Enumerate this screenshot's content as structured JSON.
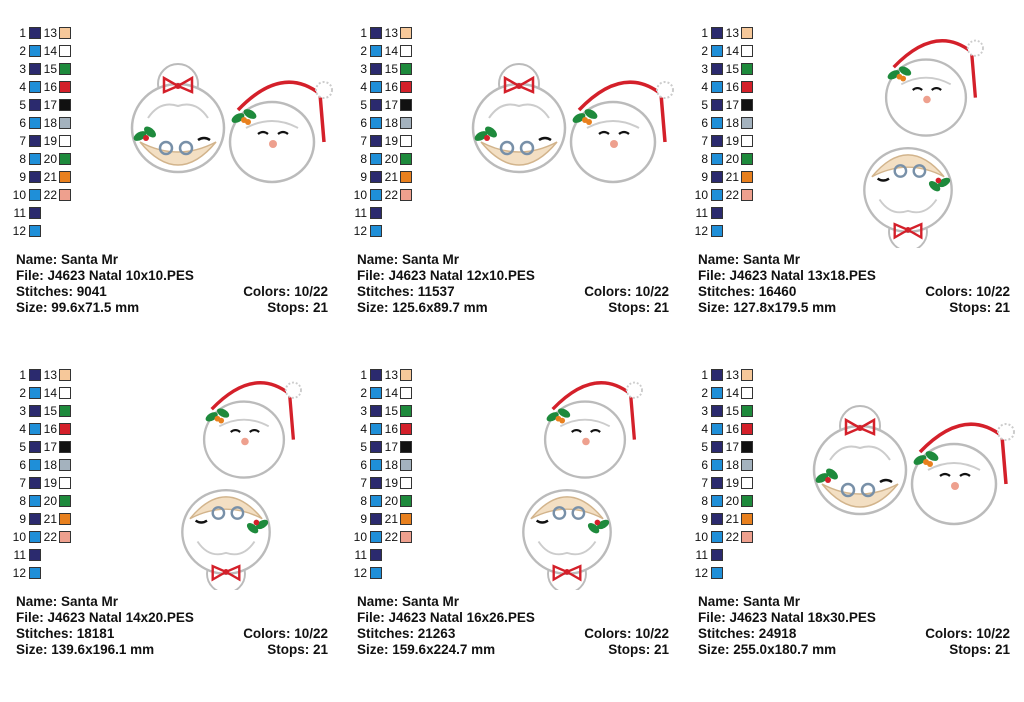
{
  "labels": {
    "name": "Name:",
    "file": "File:",
    "stitches": "Stitches:",
    "size": "Size:",
    "colors": "Colors:",
    "stops": "Stops:"
  },
  "palette": {
    "left": [
      {
        "n": "1",
        "color": "#2b2a6e"
      },
      {
        "n": "2",
        "color": "#1f8fd8"
      },
      {
        "n": "3",
        "color": "#2b2a6e"
      },
      {
        "n": "4",
        "color": "#1f8fd8"
      },
      {
        "n": "5",
        "color": "#2b2a6e"
      },
      {
        "n": "6",
        "color": "#1f8fd8"
      },
      {
        "n": "7",
        "color": "#2b2a6e"
      },
      {
        "n": "8",
        "color": "#1f8fd8"
      },
      {
        "n": "9",
        "color": "#2b2a6e"
      },
      {
        "n": "10",
        "color": "#1f8fd8"
      },
      {
        "n": "11",
        "color": "#2b2a6e"
      },
      {
        "n": "12",
        "color": "#1f8fd8"
      }
    ],
    "right": [
      {
        "n": "13",
        "color": "#f6c89a"
      },
      {
        "n": "14",
        "color": "#ffffff"
      },
      {
        "n": "15",
        "color": "#1e8a3c"
      },
      {
        "n": "16",
        "color": "#d4202a"
      },
      {
        "n": "17",
        "color": "#111111"
      },
      {
        "n": "18",
        "color": "#a4b2be"
      },
      {
        "n": "19",
        "color": "#ffffff"
      },
      {
        "n": "20",
        "color": "#1e8a3c"
      },
      {
        "n": "21",
        "color": "#e8801e"
      },
      {
        "n": "22",
        "color": "#eea08e"
      }
    ]
  },
  "panels": [
    {
      "name": "Santa Mr",
      "file": "J4623 Natal 10x10.PES",
      "stitches": "9041",
      "size": "99.6x71.5 mm",
      "colors": "10/22",
      "stops": "21",
      "layout": "side"
    },
    {
      "name": "Santa Mr",
      "file": "J4623 Natal 12x10.PES",
      "stitches": "11537",
      "size": "125.6x89.7 mm",
      "colors": "10/22",
      "stops": "21",
      "layout": "side"
    },
    {
      "name": "Santa Mr",
      "file": "J4623 Natal 13x18.PES",
      "stitches": "16460",
      "size": "127.8x179.5 mm",
      "colors": "10/22",
      "stops": "21",
      "layout": "stack"
    },
    {
      "name": "Santa Mr",
      "file": "J4623 Natal 14x20.PES",
      "stitches": "18181",
      "size": "139.6x196.1 mm",
      "colors": "10/22",
      "stops": "21",
      "layout": "stack"
    },
    {
      "name": "Santa Mr",
      "file": "J4623 Natal 16x26.PES",
      "stitches": "21263",
      "size": "159.6x224.7 mm",
      "colors": "10/22",
      "stops": "21",
      "layout": "stack"
    },
    {
      "name": "Santa Mr",
      "file": "J4623 Natal 18x30.PES",
      "stitches": "24918",
      "size": "255.0x180.7 mm",
      "colors": "10/22",
      "stops": "21",
      "layout": "side"
    }
  ]
}
